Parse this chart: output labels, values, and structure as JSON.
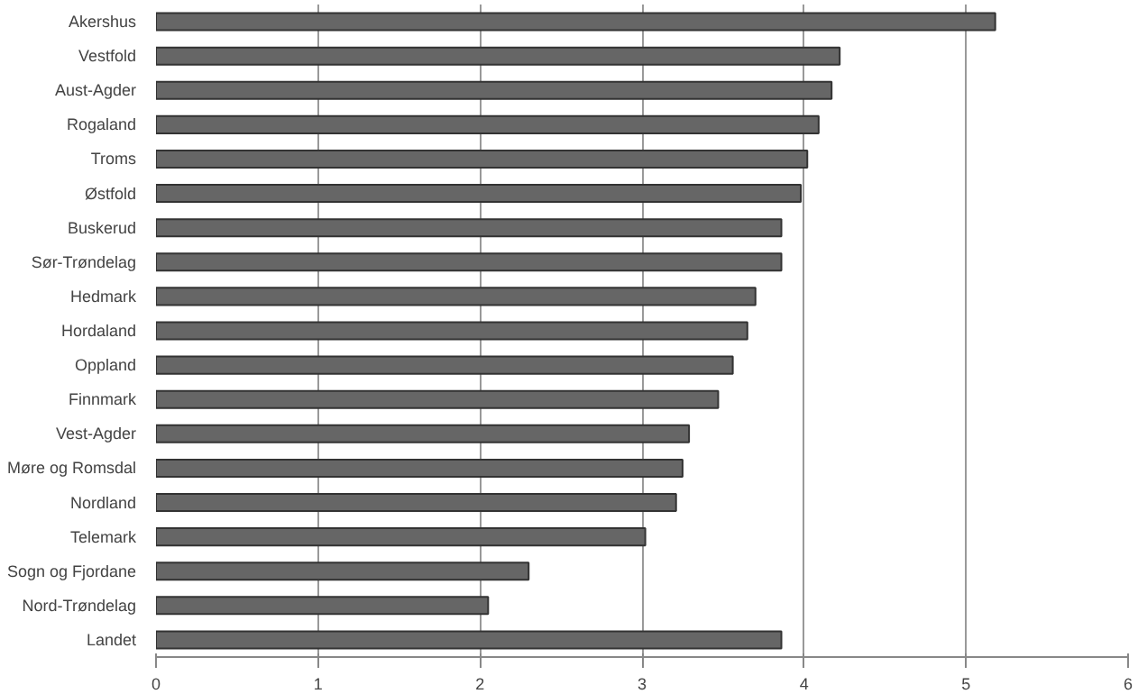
{
  "chart_data": {
    "type": "bar",
    "orientation": "horizontal",
    "categories": [
      "Akershus",
      "Vestfold",
      "Aust-Agder",
      "Rogaland",
      "Troms",
      "Østfold",
      "Buskerud",
      "Sør-Trøndelag",
      "Hedmark",
      "Hordaland",
      "Oppland",
      "Finnmark",
      "Vest-Agder",
      "Møre og Romsdal",
      "Nordland",
      "Telemark",
      "Sogn og Fjordane",
      "Nord-Trøndelag",
      "Landet"
    ],
    "values": [
      5.18,
      4.22,
      4.17,
      4.09,
      4.02,
      3.98,
      3.86,
      3.86,
      3.7,
      3.65,
      3.56,
      3.47,
      3.29,
      3.25,
      3.21,
      3.02,
      2.3,
      2.05,
      3.86
    ],
    "color": "#666666",
    "xlim": [
      0,
      6
    ],
    "xticks": [
      0,
      1,
      2,
      3,
      4,
      5,
      6
    ],
    "grid": "x"
  }
}
